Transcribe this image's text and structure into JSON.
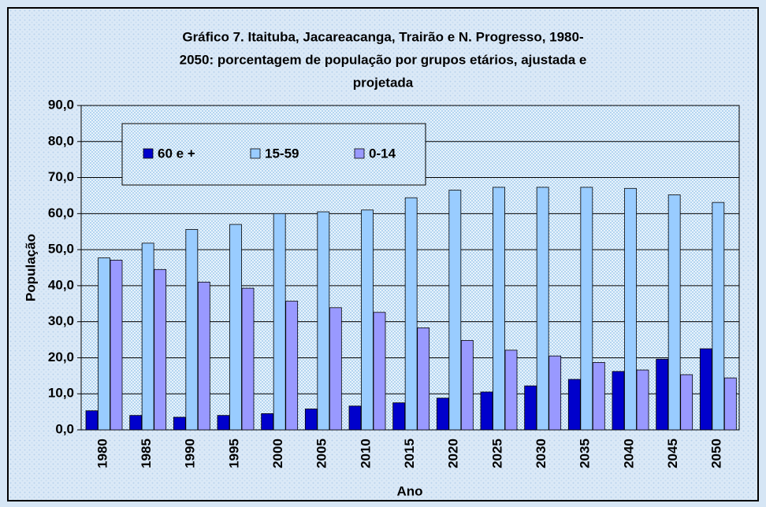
{
  "chart_data": {
    "type": "bar",
    "title": [
      "Gráfico 7. Itaituba, Jacareacanga, Trairão e N. Progresso, 1980-",
      "2050: porcentagem de população por grupos etários, ajustada e",
      "projetada"
    ],
    "x_label": "Ano",
    "y_label": "População",
    "categories": [
      "1980",
      "1985",
      "1990",
      "1995",
      "2000",
      "2005",
      "2010",
      "2015",
      "2020",
      "2025",
      "2030",
      "2035",
      "2040",
      "2045",
      "2050"
    ],
    "series": [
      {
        "name": "60 e +",
        "color": "#0000cc",
        "values": [
          5.3,
          4.0,
          3.5,
          4.0,
          4.5,
          5.8,
          6.6,
          7.5,
          8.8,
          10.5,
          12.2,
          14.0,
          16.2,
          19.6,
          22.5
        ]
      },
      {
        "name": "15-59",
        "color": "#99ccff",
        "values": [
          47.7,
          51.8,
          55.6,
          57.0,
          60.0,
          60.5,
          61.0,
          64.4,
          66.5,
          67.3,
          67.3,
          67.3,
          67.0,
          65.2,
          63.1
        ]
      },
      {
        "name": "0-14",
        "color": "#9999ff",
        "values": [
          47.1,
          44.5,
          41.0,
          39.3,
          35.7,
          33.9,
          32.6,
          28.3,
          24.8,
          22.1,
          20.5,
          18.7,
          16.6,
          15.3,
          14.4
        ]
      }
    ],
    "ylim": [
      0,
      90
    ],
    "yticks": [
      {
        "value": 0,
        "label": "0,0"
      },
      {
        "value": 10,
        "label": "10,0"
      },
      {
        "value": 20,
        "label": "20,0"
      },
      {
        "value": 30,
        "label": "30,0"
      },
      {
        "value": 40,
        "label": "40,0"
      },
      {
        "value": 50,
        "label": "50,0"
      },
      {
        "value": 60,
        "label": "60,0"
      },
      {
        "value": 70,
        "label": "70,0"
      },
      {
        "value": 80,
        "label": "80,0"
      },
      {
        "value": 90,
        "label": "90,0"
      }
    ],
    "grid": true
  }
}
